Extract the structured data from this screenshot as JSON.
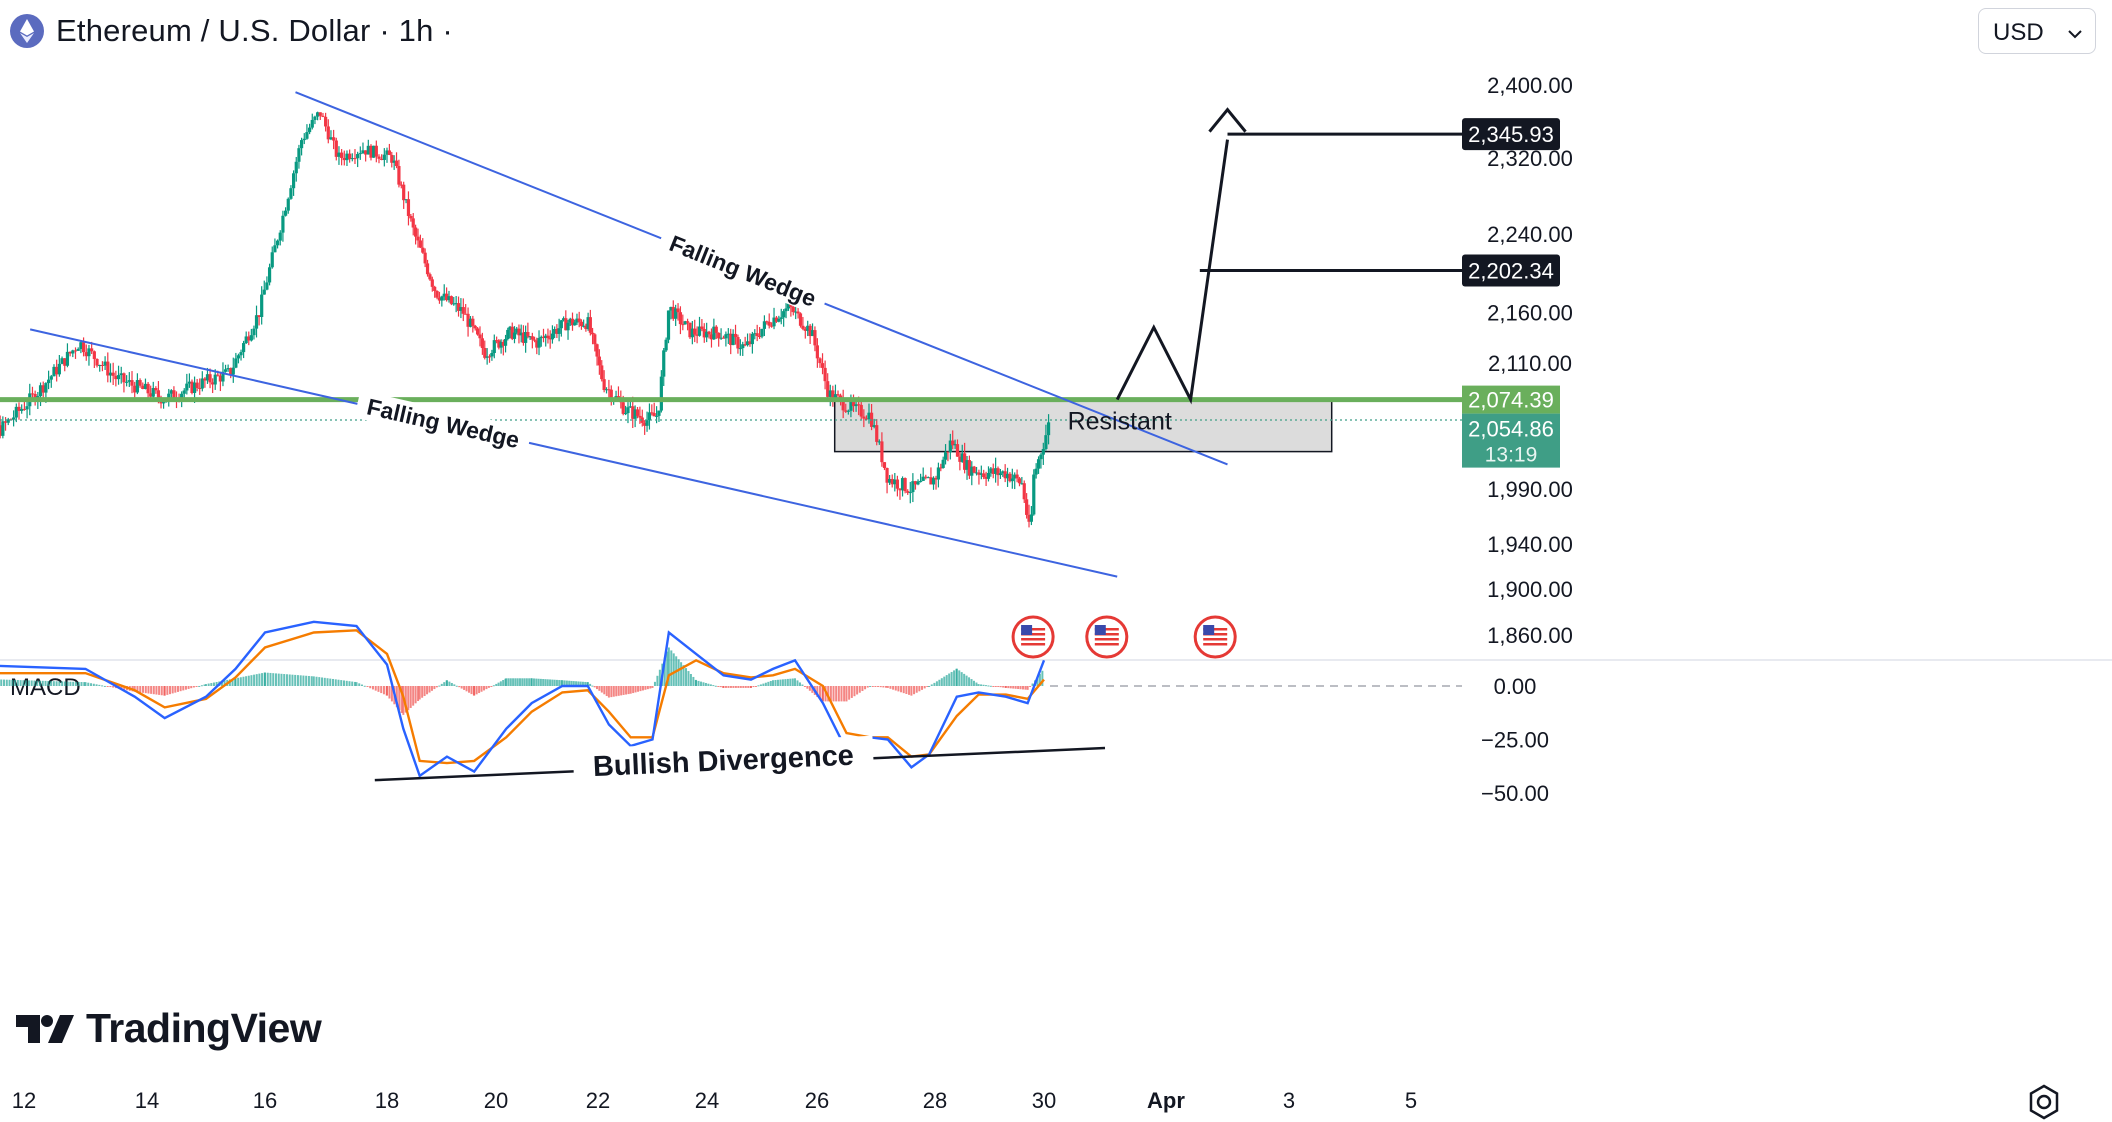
{
  "header": {
    "symbol_title": "Ethereum / U.S. Dollar · 1h ·",
    "currency_select": "USD"
  },
  "branding": {
    "logo_text": "TradingView"
  },
  "colors": {
    "up": "#089981",
    "down": "#f23645",
    "wedge": "#3d64e0",
    "support": "#6aaf5c",
    "price_tag": "#3f9e86",
    "zone_fill": "#d6d6d6",
    "macd_line": "#2962ff",
    "signal_line": "#f57c00"
  },
  "icons": [
    "ethereum-coin-icon",
    "chevron-down-icon",
    "us-flag-event-icon",
    "settings-gear-icon"
  ],
  "chart_data": {
    "type": "candlestick",
    "title": "Ethereum / U.S. Dollar · 1h",
    "x_ticks": [
      "12",
      "14",
      "16",
      "18",
      "20",
      "22",
      "24",
      "26",
      "28",
      "30",
      "Apr",
      "3",
      "5"
    ],
    "y_ticks": [
      "2,400.00",
      "2,320.00",
      "2,240.00",
      "2,160.00",
      "2,110.00",
      "1,990.00",
      "1,940.00",
      "1,900.00",
      "1,860.00"
    ],
    "ylim": [
      1845,
      2420
    ],
    "price_path": [
      {
        "day": 11.0,
        "price": 2065
      },
      {
        "day": 11.6,
        "price": 2045
      },
      {
        "day": 12.2,
        "price": 2080
      },
      {
        "day": 12.9,
        "price": 2130
      },
      {
        "day": 13.5,
        "price": 2095
      },
      {
        "day": 14.3,
        "price": 2075
      },
      {
        "day": 14.9,
        "price": 2090
      },
      {
        "day": 15.4,
        "price": 2100
      },
      {
        "day": 15.9,
        "price": 2160
      },
      {
        "day": 16.3,
        "price": 2260
      },
      {
        "day": 16.6,
        "price": 2340
      },
      {
        "day": 16.9,
        "price": 2370
      },
      {
        "day": 17.2,
        "price": 2320
      },
      {
        "day": 17.6,
        "price": 2330
      },
      {
        "day": 18.1,
        "price": 2320
      },
      {
        "day": 18.5,
        "price": 2240
      },
      {
        "day": 18.9,
        "price": 2180
      },
      {
        "day": 19.4,
        "price": 2160
      },
      {
        "day": 19.8,
        "price": 2120
      },
      {
        "day": 20.3,
        "price": 2140
      },
      {
        "day": 20.8,
        "price": 2130
      },
      {
        "day": 21.4,
        "price": 2150
      },
      {
        "day": 21.8,
        "price": 2150
      },
      {
        "day": 22.1,
        "price": 2090
      },
      {
        "day": 22.5,
        "price": 2065
      },
      {
        "day": 22.9,
        "price": 2055
      },
      {
        "day": 23.1,
        "price": 2060
      },
      {
        "day": 23.3,
        "price": 2165
      },
      {
        "day": 23.7,
        "price": 2140
      },
      {
        "day": 24.2,
        "price": 2140
      },
      {
        "day": 24.7,
        "price": 2125
      },
      {
        "day": 25.1,
        "price": 2150
      },
      {
        "day": 25.5,
        "price": 2165
      },
      {
        "day": 25.9,
        "price": 2140
      },
      {
        "day": 26.2,
        "price": 2080
      },
      {
        "day": 26.6,
        "price": 2065
      },
      {
        "day": 26.9,
        "price": 2060
      },
      {
        "day": 27.2,
        "price": 2000
      },
      {
        "day": 27.6,
        "price": 1990
      },
      {
        "day": 28.0,
        "price": 2000
      },
      {
        "day": 28.3,
        "price": 2035
      },
      {
        "day": 28.6,
        "price": 2010
      },
      {
        "day": 28.9,
        "price": 2005
      },
      {
        "day": 29.3,
        "price": 2005
      },
      {
        "day": 29.6,
        "price": 1995
      },
      {
        "day": 29.75,
        "price": 1945
      },
      {
        "day": 29.8,
        "price": 2000
      },
      {
        "day": 30.0,
        "price": 2035
      },
      {
        "day": 30.1,
        "price": 2054.86
      }
    ],
    "horizontal_support": 2074.39,
    "resistance_zone": {
      "label": "Resistant",
      "from_day": 26.3,
      "to_day": 34.7,
      "low": 2025,
      "high": 2074.39
    },
    "wedge_upper": {
      "label": "Falling Wedge",
      "start": {
        "day": 16.5,
        "price": 2392
      },
      "end": {
        "day": 33.0,
        "price": 2013
      }
    },
    "wedge_lower": {
      "label": "Falling Wedge",
      "start": {
        "day": 12.1,
        "price": 2143
      },
      "end": {
        "day": 31.2,
        "price": 1911
      }
    },
    "projection_path": [
      {
        "day": 31.2,
        "price": 2074.39
      },
      {
        "day": 31.8,
        "price": 2145
      },
      {
        "day": 32.4,
        "price": 2074.39
      },
      {
        "day": 33.0,
        "price": 2340
      }
    ],
    "targets": [
      {
        "label": "2,345.93",
        "price": 2345.93
      },
      {
        "label": "2,202.34",
        "price": 2202.34
      }
    ],
    "price_labels": {
      "support": "2,074.39",
      "current": "2,054.86",
      "countdown": "13:19"
    },
    "event_days": [
      29.8,
      30.8,
      32.8
    ],
    "macd": {
      "label": "MACD",
      "ticks": [
        "0.00",
        "−25.00",
        "−50.00"
      ],
      "ylim": [
        -52,
        32
      ],
      "macd_line": [
        {
          "day": 11.0,
          "v": 10
        },
        {
          "day": 13.0,
          "v": 8
        },
        {
          "day": 13.8,
          "v": -5
        },
        {
          "day": 14.3,
          "v": -15
        },
        {
          "day": 15.0,
          "v": -5
        },
        {
          "day": 15.5,
          "v": 8
        },
        {
          "day": 16.0,
          "v": 25
        },
        {
          "day": 16.8,
          "v": 30
        },
        {
          "day": 17.5,
          "v": 28
        },
        {
          "day": 18.0,
          "v": 10
        },
        {
          "day": 18.3,
          "v": -20
        },
        {
          "day": 18.6,
          "v": -42
        },
        {
          "day": 19.1,
          "v": -33
        },
        {
          "day": 19.6,
          "v": -40
        },
        {
          "day": 20.2,
          "v": -20
        },
        {
          "day": 20.7,
          "v": -8
        },
        {
          "day": 21.3,
          "v": 0
        },
        {
          "day": 21.8,
          "v": 0
        },
        {
          "day": 22.2,
          "v": -18
        },
        {
          "day": 22.6,
          "v": -28
        },
        {
          "day": 23.0,
          "v": -25
        },
        {
          "day": 23.3,
          "v": 25
        },
        {
          "day": 23.8,
          "v": 15
        },
        {
          "day": 24.3,
          "v": 5
        },
        {
          "day": 24.8,
          "v": 3
        },
        {
          "day": 25.2,
          "v": 8
        },
        {
          "day": 25.6,
          "v": 12
        },
        {
          "day": 26.1,
          "v": -8
        },
        {
          "day": 26.5,
          "v": -30
        },
        {
          "day": 26.9,
          "v": -24
        },
        {
          "day": 27.2,
          "v": -25
        },
        {
          "day": 27.6,
          "v": -38
        },
        {
          "day": 27.9,
          "v": -32
        },
        {
          "day": 28.4,
          "v": -5
        },
        {
          "day": 28.8,
          "v": -3
        },
        {
          "day": 29.3,
          "v": -5
        },
        {
          "day": 29.7,
          "v": -8
        },
        {
          "day": 30.0,
          "v": 12
        }
      ],
      "signal_line": [
        {
          "day": 11.0,
          "v": 6
        },
        {
          "day": 13.0,
          "v": 6
        },
        {
          "day": 13.8,
          "v": -2
        },
        {
          "day": 14.3,
          "v": -10
        },
        {
          "day": 15.0,
          "v": -6
        },
        {
          "day": 15.5,
          "v": 4
        },
        {
          "day": 16.0,
          "v": 18
        },
        {
          "day": 16.8,
          "v": 25
        },
        {
          "day": 17.5,
          "v": 26
        },
        {
          "day": 18.0,
          "v": 15
        },
        {
          "day": 18.3,
          "v": -5
        },
        {
          "day": 18.6,
          "v": -35
        },
        {
          "day": 19.1,
          "v": -36
        },
        {
          "day": 19.6,
          "v": -35
        },
        {
          "day": 20.2,
          "v": -24
        },
        {
          "day": 20.7,
          "v": -12
        },
        {
          "day": 21.3,
          "v": -3
        },
        {
          "day": 21.8,
          "v": -2
        },
        {
          "day": 22.2,
          "v": -12
        },
        {
          "day": 22.6,
          "v": -24
        },
        {
          "day": 23.0,
          "v": -24
        },
        {
          "day": 23.3,
          "v": 5
        },
        {
          "day": 23.8,
          "v": 12
        },
        {
          "day": 24.3,
          "v": 6
        },
        {
          "day": 24.8,
          "v": 4
        },
        {
          "day": 25.2,
          "v": 5
        },
        {
          "day": 25.6,
          "v": 8
        },
        {
          "day": 26.1,
          "v": 0
        },
        {
          "day": 26.5,
          "v": -22
        },
        {
          "day": 26.9,
          "v": -24
        },
        {
          "day": 27.2,
          "v": -24
        },
        {
          "day": 27.6,
          "v": -33
        },
        {
          "day": 27.9,
          "v": -32
        },
        {
          "day": 28.4,
          "v": -14
        },
        {
          "day": 28.8,
          "v": -4
        },
        {
          "day": 29.3,
          "v": -4
        },
        {
          "day": 29.7,
          "v": -6
        },
        {
          "day": 30.0,
          "v": 3
        }
      ],
      "divergence": {
        "label": "Bullish Divergence",
        "start": {
          "day": 17.8,
          "v": -44
        },
        "end": {
          "day": 31.0,
          "v": -29
        }
      }
    }
  }
}
